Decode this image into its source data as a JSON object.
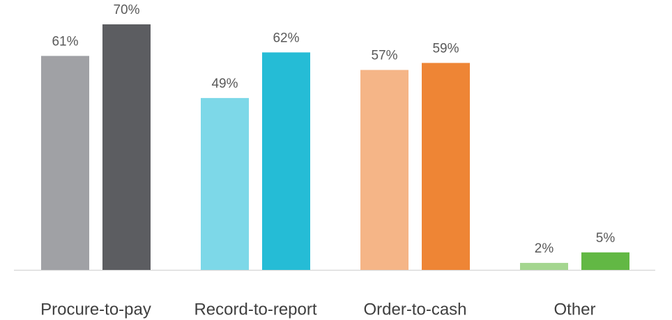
{
  "chart_data": {
    "type": "bar",
    "categories": [
      "Procure-to-pay",
      "Record-to-report",
      "Order-to-cash",
      "Other"
    ],
    "series": [
      {
        "colors": [
          "#a0a1a5",
          "#7dd8e8",
          "#f5b587",
          "#a4d68f"
        ],
        "values": [
          61,
          49,
          57,
          2
        ],
        "value_labels": [
          "61%",
          "49%",
          "57%",
          "2%"
        ]
      },
      {
        "colors": [
          "#5c5d61",
          "#25bcd6",
          "#ee8535",
          "#62b844"
        ],
        "values": [
          70,
          62,
          59,
          5
        ],
        "value_labels": [
          "70%",
          "62%",
          "59%",
          "5%"
        ]
      }
    ],
    "ylim": [
      0,
      70
    ]
  }
}
